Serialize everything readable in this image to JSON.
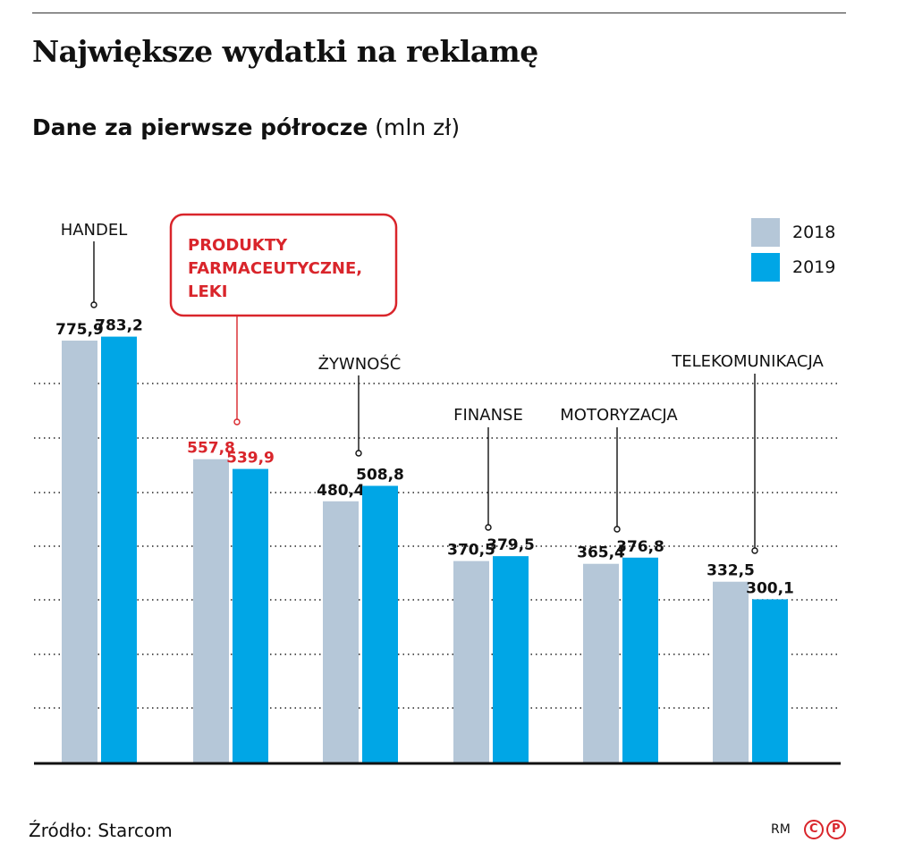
{
  "header": {
    "title": "Największe wydatki na reklamę",
    "subtitle_bold": "Dane za pierwsze półrocze",
    "subtitle_unit": "(mln zł)"
  },
  "footer": {
    "source": "Źródło: Starcom",
    "credit": "RM",
    "logo_c": "C",
    "logo_p": "P"
  },
  "colors": {
    "series_2018": "#b5c7d8",
    "series_2019": "#00a6e6",
    "highlight": "#d9252b",
    "text": "#111111"
  },
  "chart_data": {
    "type": "bar",
    "title": "Największe wydatki na reklamę",
    "subtitle": "Dane za pierwsze półrocze (mln zł)",
    "categories": [
      "HANDEL",
      "PRODUKTY FARMACEUTYCZNE, LEKI",
      "ŻYWNOŚĆ",
      "FINANSE",
      "MOTORYZACJA",
      "TELEKOMUNIKACJA"
    ],
    "category_lines": [
      [
        "HANDEL"
      ],
      [
        "PRODUKTY",
        "FARMACEUTYCZNE,",
        "LEKI"
      ],
      [
        "ŻYWNOŚĆ"
      ],
      [
        "FINANSE"
      ],
      [
        "MOTORYZACJA"
      ],
      [
        "TELEKOMUNIKACJA"
      ]
    ],
    "highlighted_category": "PRODUKTY FARMACEUTYCZNE, LEKI",
    "series": [
      {
        "name": "2018",
        "values": [
          775.9,
          557.8,
          480.4,
          370.5,
          365.4,
          332.5
        ],
        "labels": [
          "775,9",
          "557,8",
          "480,4",
          "370,5",
          "365,4",
          "332,5"
        ]
      },
      {
        "name": "2019",
        "values": [
          783.2,
          539.9,
          508.8,
          379.5,
          376.8,
          300.1
        ],
        "labels": [
          "783,2",
          "539,9",
          "508,8",
          "379,5",
          "376,8",
          "300,1"
        ]
      }
    ],
    "ylim": [
      0,
      800
    ],
    "grid": "dotted horizontal",
    "legend_position": "top-right"
  }
}
